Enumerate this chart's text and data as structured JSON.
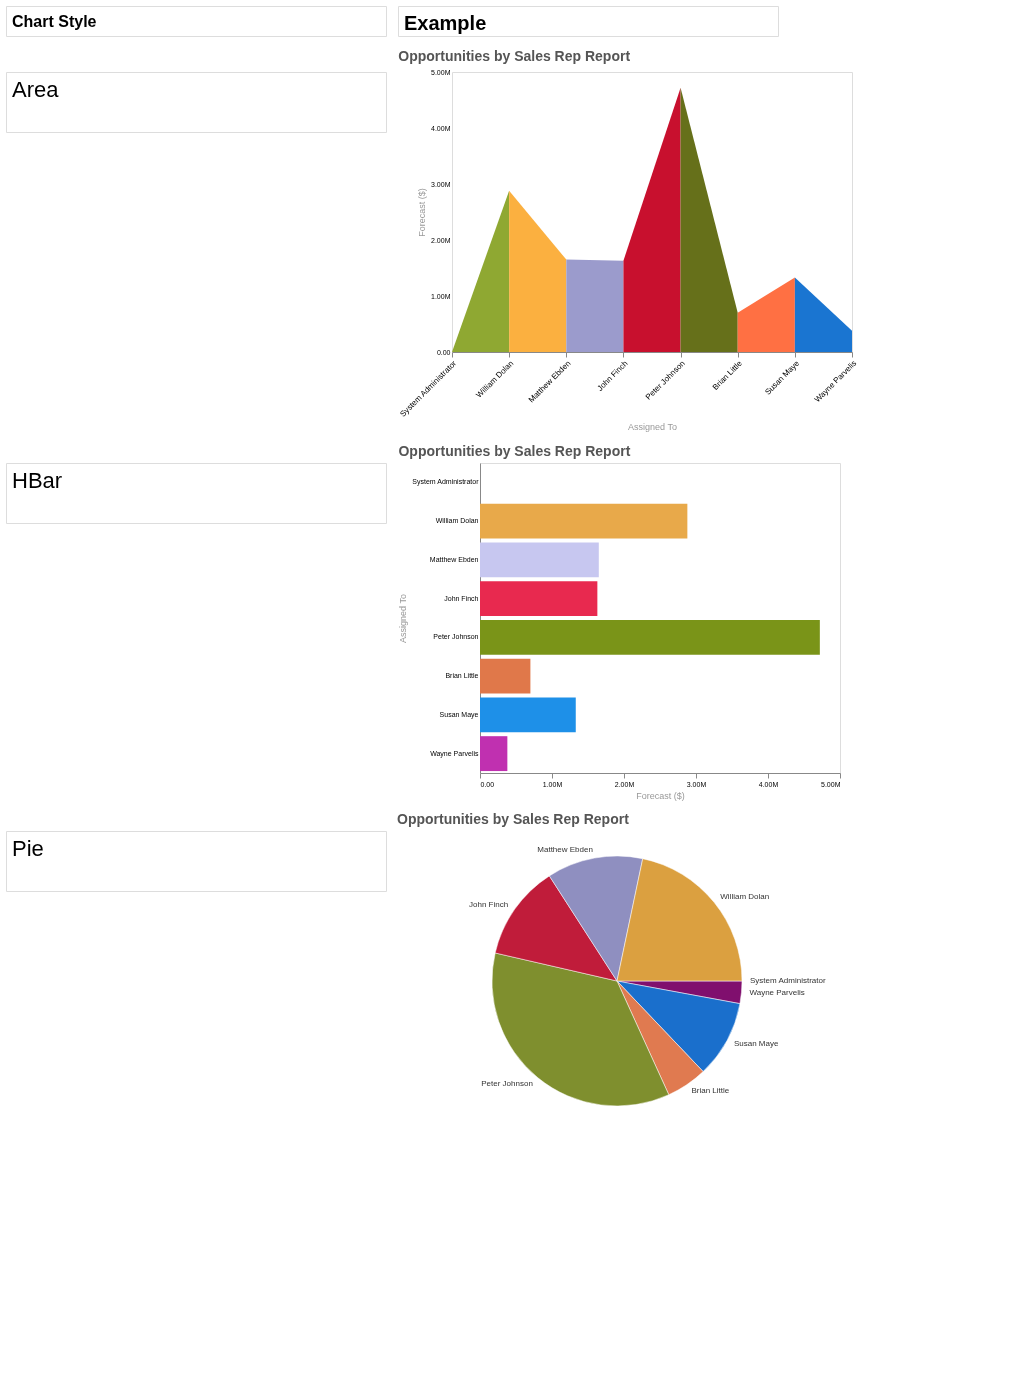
{
  "chart_data": [
    {
      "type": "other",
      "title": "Chart Style",
      "annotations": [
        "Example",
        "Area",
        "HBar",
        "Pie"
      ]
    },
    {
      "type": "area",
      "title": "Opportunities by Sales Rep Report",
      "xlabel": "Assigned To",
      "ylabel": "Forecast ($)",
      "categories": [
        "System Administrator",
        "William Dolan",
        "Matthew Ebden",
        "John Finch",
        "Peter Johnson",
        "Brian Little",
        "Susan Maye",
        "Wayne Parvelis"
      ],
      "series": [
        {
          "color": "#8fa832",
          "values": [
            0,
            2.88,
            null,
            null,
            null,
            null,
            null,
            null
          ]
        },
        {
          "color": "#fbb040",
          "values": [
            null,
            2.88,
            1.65,
            null,
            null,
            null,
            null,
            null
          ]
        },
        {
          "color": "#9b9bcc",
          "values": [
            null,
            null,
            1.65,
            1.63,
            null,
            null,
            null,
            null
          ]
        },
        {
          "color": "#c8102e",
          "values": [
            null,
            null,
            null,
            1.63,
            4.72,
            null,
            null,
            null
          ]
        },
        {
          "color": "#66701a",
          "values": [
            null,
            null,
            null,
            null,
            4.72,
            0.7,
            null,
            null
          ]
        },
        {
          "color": "#ff7043",
          "values": [
            null,
            null,
            null,
            null,
            null,
            0.7,
            1.33,
            null
          ]
        },
        {
          "color": "#1a75d1",
          "values": [
            null,
            null,
            null,
            null,
            null,
            null,
            1.33,
            0.38
          ]
        }
      ],
      "ylim": [
        0,
        5
      ],
      "yticks": [
        {
          "value": 0,
          "label": "0.00"
        },
        {
          "value": 1,
          "label": "1.00M"
        },
        {
          "value": 2,
          "label": "2.00M"
        },
        {
          "value": 3,
          "label": "3.00M"
        },
        {
          "value": 4,
          "label": "4.00M"
        },
        {
          "value": 5,
          "label": "5.00M"
        }
      ]
    },
    {
      "type": "bar",
      "orientation": "horizontal",
      "title": "Opportunities by Sales Rep Report",
      "xlabel": "Forecast ($)",
      "ylabel": "Assigned To",
      "categories": [
        "System Administrator",
        "William Dolan",
        "Matthew Ebden",
        "John Finch",
        "Peter Johnson",
        "Brian Little",
        "Susan Maye",
        "Wayne Parvelis"
      ],
      "values": [
        0,
        2.88,
        1.65,
        1.63,
        4.72,
        0.7,
        1.33,
        0.38
      ],
      "colors": [
        "#999999",
        "#e8a94a",
        "#c7c7f0",
        "#e8294f",
        "#7a9418",
        "#e0784a",
        "#1e90e8",
        "#c030b0"
      ],
      "xlim": [
        0,
        5
      ],
      "xticks": [
        {
          "value": 0,
          "label": "0.00"
        },
        {
          "value": 1,
          "label": "1.00M"
        },
        {
          "value": 2,
          "label": "2.00M"
        },
        {
          "value": 3,
          "label": "3.00M"
        },
        {
          "value": 4,
          "label": "4.00M"
        },
        {
          "value": 5,
          "label": "5.00M"
        }
      ]
    },
    {
      "type": "pie",
      "title": "Opportunities by Sales Rep Report",
      "categories": [
        "System Administrator",
        "Wayne Parvelis",
        "Susan Maye",
        "Brian Little",
        "Peter Johnson",
        "John Finch",
        "Matthew Ebden",
        "William Dolan"
      ],
      "values": [
        0,
        2.9,
        10.0,
        5.3,
        35.4,
        12.3,
        12.4,
        21.7
      ],
      "colors": [
        "#5a2d82",
        "#800f6e",
        "#1a6fcc",
        "#e07a50",
        "#7f8f2e",
        "#c01c3a",
        "#8f8fc0",
        "#dba040"
      ]
    }
  ]
}
